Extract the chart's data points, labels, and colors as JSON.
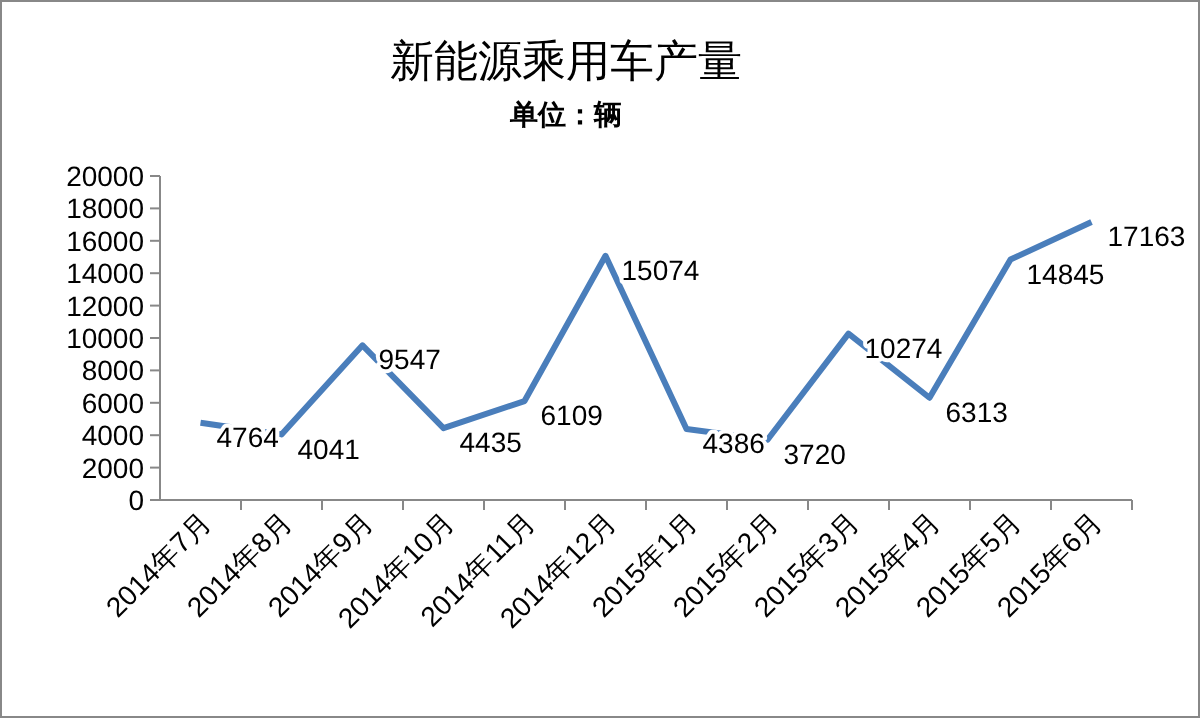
{
  "chart_data": {
    "type": "line",
    "title": "新能源乘用车产量",
    "subtitle": "单位：辆",
    "categories": [
      "2014年7月",
      "2014年8月",
      "2014年9月",
      "2014年10月",
      "2014年11月",
      "2014年12月",
      "2015年1月",
      "2015年2月",
      "2015年3月",
      "2015年4月",
      "2015年5月",
      "2015年6月"
    ],
    "values": [
      4764,
      4041,
      9547,
      4435,
      6109,
      15074,
      4386,
      3720,
      10274,
      6313,
      14845,
      17163
    ],
    "color": "#4a7ebb",
    "ylim": [
      0,
      20000
    ],
    "yticks": [
      0,
      2000,
      4000,
      6000,
      8000,
      10000,
      12000,
      14000,
      16000,
      18000,
      20000
    ],
    "grid": false,
    "data_labels": true
  }
}
